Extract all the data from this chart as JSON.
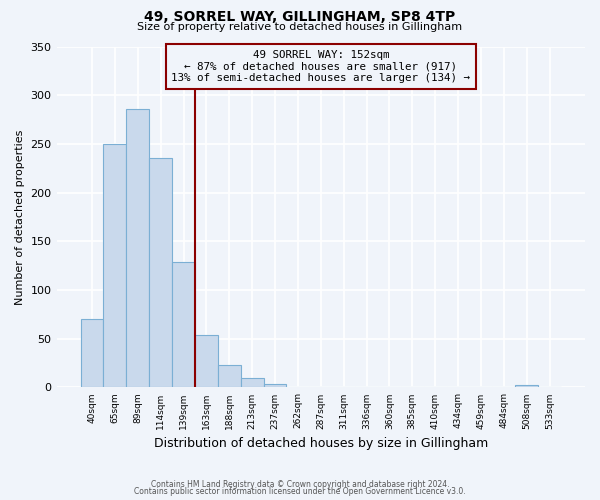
{
  "title": "49, SORREL WAY, GILLINGHAM, SP8 4TP",
  "subtitle": "Size of property relative to detached houses in Gillingham",
  "xlabel": "Distribution of detached houses by size in Gillingham",
  "ylabel": "Number of detached properties",
  "bar_labels": [
    "40sqm",
    "65sqm",
    "89sqm",
    "114sqm",
    "139sqm",
    "163sqm",
    "188sqm",
    "213sqm",
    "237sqm",
    "262sqm",
    "287sqm",
    "311sqm",
    "336sqm",
    "360sqm",
    "385sqm",
    "410sqm",
    "434sqm",
    "459sqm",
    "484sqm",
    "508sqm",
    "533sqm"
  ],
  "bar_values": [
    70,
    250,
    286,
    236,
    129,
    54,
    23,
    10,
    4,
    0,
    0,
    0,
    0,
    0,
    0,
    0,
    0,
    0,
    0,
    3,
    0
  ],
  "bar_color": "#c9d9ec",
  "bar_edgecolor": "#7bafd4",
  "vline_x": 5.0,
  "vline_color": "#8b0000",
  "annotation_title": "49 SORREL WAY: 152sqm",
  "annotation_line1": "← 87% of detached houses are smaller (917)",
  "annotation_line2": "13% of semi-detached houses are larger (134) →",
  "annotation_box_color": "#8b0000",
  "ylim": [
    0,
    350
  ],
  "yticks": [
    0,
    50,
    100,
    150,
    200,
    250,
    300,
    350
  ],
  "footer_line1": "Contains HM Land Registry data © Crown copyright and database right 2024.",
  "footer_line2": "Contains public sector information licensed under the Open Government Licence v3.0.",
  "background_color": "#f0f4fa",
  "grid_color": "#ffffff",
  "title_fontsize": 10,
  "subtitle_fontsize": 8
}
